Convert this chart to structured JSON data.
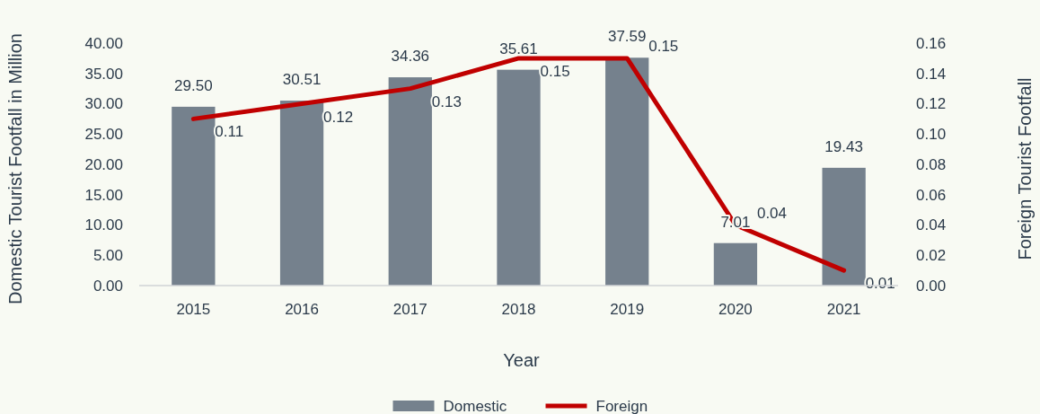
{
  "chart_data": {
    "type": "bar",
    "xlabel": "Year",
    "ylabel": "Domestic Tourist Footfall in Million",
    "y2label": "Foreign Tourist Footfall",
    "categories": [
      "2015",
      "2016",
      "2017",
      "2018",
      "2019",
      "2020",
      "2021"
    ],
    "series": [
      {
        "name": "Domestic",
        "color": "#75818d",
        "values": [
          29.5,
          30.51,
          34.36,
          35.61,
          37.59,
          7.01,
          19.43
        ],
        "value_labels": [
          "29.50",
          "30.51",
          "34.36",
          "35.61",
          "37.59",
          "7.01",
          "19.43"
        ]
      },
      {
        "name": "Foreign",
        "type": "line",
        "axis": "y2",
        "color": "#c00000",
        "values": [
          0.11,
          0.12,
          0.13,
          0.15,
          0.15,
          0.04,
          0.01
        ],
        "value_labels": [
          "0.11",
          "0.12",
          "0.13",
          "0.15",
          "0.15",
          "0.04",
          "0.01"
        ]
      }
    ],
    "ylim": [
      0,
      40
    ],
    "yticks": [
      {
        "value": 0,
        "label": "0.00"
      },
      {
        "value": 5,
        "label": "5.00"
      },
      {
        "value": 10,
        "label": "10.00"
      },
      {
        "value": 15,
        "label": "15.00"
      },
      {
        "value": 20,
        "label": "20.00"
      },
      {
        "value": 25,
        "label": "25.00"
      },
      {
        "value": 30,
        "label": "30.00"
      },
      {
        "value": 35,
        "label": "35.00"
      },
      {
        "value": 40,
        "label": "40.00"
      }
    ],
    "y2lim": [
      0,
      0.16
    ],
    "y2ticks": [
      {
        "value": 0,
        "label": "0.00"
      },
      {
        "value": 0.02,
        "label": "0.02"
      },
      {
        "value": 0.04,
        "label": "0.04"
      },
      {
        "value": 0.06,
        "label": "0.06"
      },
      {
        "value": 0.08,
        "label": "0.08"
      },
      {
        "value": 0.1,
        "label": "0.10"
      },
      {
        "value": 0.12,
        "label": "0.12"
      },
      {
        "value": 0.14,
        "label": "0.14"
      },
      {
        "value": 0.16,
        "label": "0.16"
      }
    ],
    "grid": false,
    "legend": "bottom",
    "marker": "none",
    "line_style": "solid"
  }
}
